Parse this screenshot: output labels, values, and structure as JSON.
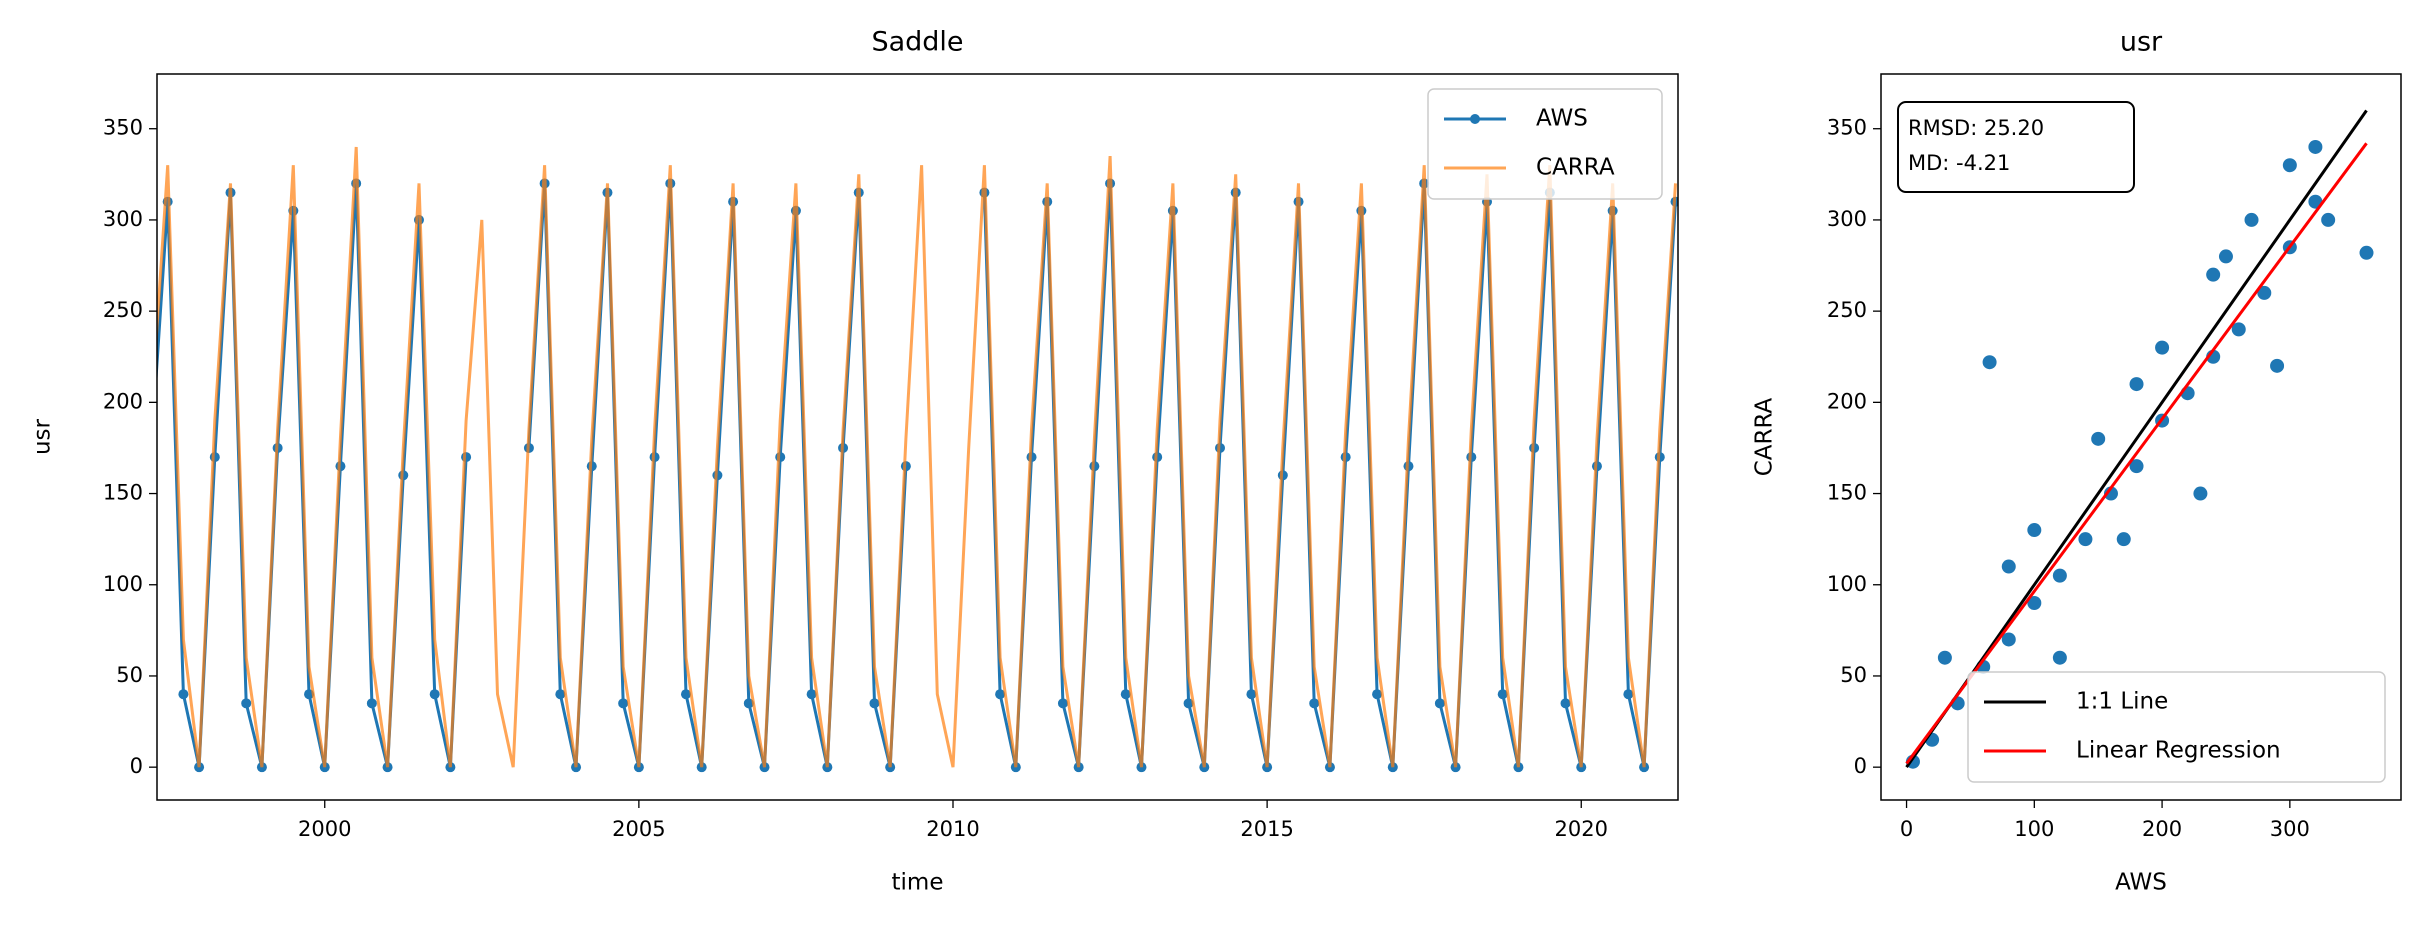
{
  "chart_data": [
    {
      "type": "line",
      "title": "Saddle",
      "xlabel": "time",
      "ylabel": "usr",
      "xlim": [
        1997.33,
        2021.54
      ],
      "xticks": [
        2000,
        2005,
        2010,
        2015,
        2020
      ],
      "ylim": [
        -18,
        380
      ],
      "yticks": [
        0,
        50,
        100,
        150,
        200,
        250,
        300,
        350
      ],
      "legend": "upper right",
      "x": [
        1997.25,
        1997.5,
        1997.75,
        1998,
        1998.25,
        1998.5,
        1998.75,
        1999,
        1999.25,
        1999.5,
        1999.75,
        2000,
        2000.25,
        2000.5,
        2000.75,
        2001,
        2001.25,
        2001.5,
        2001.75,
        2002,
        2002.25,
        2002.5,
        2002.75,
        2003,
        2003.25,
        2003.5,
        2003.75,
        2004,
        2004.25,
        2004.5,
        2004.75,
        2005,
        2005.25,
        2005.5,
        2005.75,
        2006,
        2006.25,
        2006.5,
        2006.75,
        2007,
        2007.25,
        2007.5,
        2007.75,
        2008,
        2008.25,
        2008.5,
        2008.75,
        2009,
        2009.25,
        2009.5,
        2009.75,
        2010,
        2010.25,
        2010.5,
        2010.75,
        2011,
        2011.25,
        2011.5,
        2011.75,
        2012,
        2012.25,
        2012.5,
        2012.75,
        2013,
        2013.25,
        2013.5,
        2013.75,
        2014,
        2014.25,
        2014.5,
        2014.75,
        2015,
        2015.25,
        2015.5,
        2015.75,
        2016,
        2016.25,
        2016.5,
        2016.75,
        2017,
        2017.25,
        2017.5,
        2017.75,
        2018,
        2018.25,
        2018.5,
        2018.75,
        2019,
        2019.25,
        2019.5,
        2019.75,
        2020,
        2020.25,
        2020.5,
        2020.75,
        2021,
        2021.25,
        2021.5
      ],
      "series": [
        {
          "name": "AWS",
          "color": "#1f77b4",
          "marker": "o",
          "values": [
            180,
            310,
            40,
            0,
            170,
            315,
            35,
            0,
            175,
            305,
            40,
            0,
            165,
            320,
            35,
            0,
            160,
            300,
            40,
            0,
            170,
            null,
            null,
            null,
            175,
            320,
            40,
            0,
            165,
            315,
            35,
            0,
            170,
            320,
            40,
            0,
            160,
            310,
            35,
            0,
            170,
            305,
            40,
            0,
            175,
            315,
            35,
            0,
            165,
            null,
            null,
            null,
            null,
            315,
            40,
            0,
            170,
            310,
            35,
            0,
            165,
            320,
            40,
            0,
            170,
            305,
            35,
            0,
            175,
            315,
            40,
            0,
            160,
            310,
            35,
            0,
            170,
            305,
            40,
            0,
            165,
            320,
            35,
            0,
            170,
            310,
            40,
            0,
            175,
            315,
            35,
            0,
            165,
            305,
            40,
            0,
            170,
            310
          ]
        },
        {
          "name": "CARRA",
          "color": "#ff7f0e",
          "values": [
            200,
            330,
            70,
            0,
            190,
            320,
            60,
            0,
            185,
            330,
            55,
            0,
            180,
            340,
            60,
            0,
            175,
            320,
            70,
            0,
            190,
            300,
            40,
            0,
            185,
            330,
            60,
            0,
            180,
            320,
            55,
            0,
            185,
            330,
            60,
            0,
            175,
            320,
            50,
            0,
            190,
            320,
            60,
            0,
            185,
            325,
            55,
            0,
            180,
            330,
            40,
            0,
            175,
            330,
            60,
            0,
            185,
            320,
            55,
            0,
            180,
            335,
            60,
            0,
            185,
            320,
            50,
            0,
            190,
            325,
            60,
            0,
            175,
            320,
            55,
            0,
            185,
            320,
            60,
            0,
            180,
            330,
            55,
            0,
            185,
            325,
            60,
            0,
            190,
            330,
            55,
            0,
            180,
            320,
            60,
            0,
            185,
            320
          ]
        }
      ]
    },
    {
      "type": "scatter",
      "title": "usr",
      "xlabel": "AWS",
      "ylabel": "CARRA",
      "xlim": [
        -20,
        387
      ],
      "xticks": [
        0,
        100,
        200,
        300
      ],
      "ylim": [
        -18,
        380
      ],
      "yticks": [
        0,
        50,
        100,
        150,
        200,
        250,
        300,
        350
      ],
      "color": "#1f77b4",
      "legend": "lower right",
      "annotation": [
        "RMSD: 25.20",
        "MD: -4.21"
      ],
      "x": [
        5,
        20,
        40,
        60,
        80,
        100,
        120,
        140,
        160,
        180,
        200,
        220,
        240,
        260,
        280,
        300,
        320,
        320,
        300,
        250,
        200,
        150,
        100,
        65,
        170,
        230,
        290,
        360,
        330,
        120,
        80,
        30,
        240,
        270,
        180
      ],
      "y": [
        3,
        15,
        35,
        55,
        70,
        90,
        105,
        125,
        150,
        165,
        190,
        205,
        225,
        240,
        260,
        285,
        310,
        340,
        330,
        280,
        230,
        180,
        130,
        222,
        125,
        150,
        220,
        282,
        300,
        60,
        110,
        60,
        270,
        300,
        210
      ],
      "lines": [
        {
          "name": "1:1 Line",
          "color": "#000000",
          "x": [
            0,
            360
          ],
          "y": [
            0,
            360
          ]
        },
        {
          "name": "Linear Regression",
          "color": "#ff0000",
          "x": [
            0,
            360
          ],
          "y": [
            2,
            342
          ]
        }
      ]
    }
  ]
}
